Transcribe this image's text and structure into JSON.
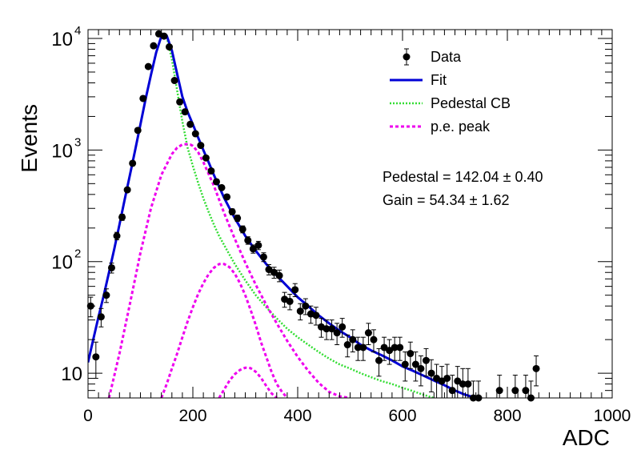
{
  "chart_data": {
    "type": "scatter",
    "xlabel": "ADC",
    "ylabel": "Events",
    "xlim": [
      0,
      1000
    ],
    "ylim": [
      6,
      12000
    ],
    "yscale": "log",
    "grid": false,
    "legend_position": "top-right",
    "x_ticks": [
      "0",
      "200",
      "400",
      "600",
      "800",
      "1000"
    ],
    "x_tick_values": [
      0,
      200,
      400,
      600,
      800,
      1000
    ],
    "y_ticks": [
      {
        "value": 10,
        "base": "10",
        "exp": ""
      },
      {
        "value": 100,
        "base": "10",
        "exp": "2"
      },
      {
        "value": 1000,
        "base": "10",
        "exp": "3"
      },
      {
        "value": 10000,
        "base": "10",
        "exp": "4"
      }
    ],
    "legend": [
      {
        "label": "Data",
        "style": "marker",
        "color": "#000000"
      },
      {
        "label": "Fit",
        "style": "solid",
        "color": "#0000d6"
      },
      {
        "label": "Pedestal CB",
        "style": "dotted",
        "color": "#33dd33"
      },
      {
        "label": "p.e. peak",
        "style": "dashed",
        "color": "#ee00ee"
      }
    ],
    "annotations": [
      {
        "text": "Pedestal = 142.04 ± 0.40"
      },
      {
        "text": "Gain = 54.34 ± 1.62"
      }
    ],
    "series": [
      {
        "name": "Data",
        "style": "marker",
        "color": "#000000",
        "x": [
          5,
          15,
          25,
          35,
          45,
          55,
          65,
          75,
          85,
          95,
          105,
          115,
          125,
          135,
          145,
          155,
          165,
          175,
          185,
          195,
          205,
          215,
          225,
          235,
          245,
          255,
          265,
          275,
          285,
          295,
          305,
          315,
          325,
          335,
          345,
          355,
          365,
          375,
          385,
          395,
          405,
          415,
          425,
          435,
          445,
          455,
          465,
          475,
          485,
          495,
          505,
          515,
          525,
          535,
          545,
          555,
          565,
          575,
          585,
          595,
          605,
          615,
          625,
          635,
          645,
          655,
          665,
          675,
          685,
          695,
          705,
          715,
          725,
          735,
          745,
          785,
          815,
          835,
          845,
          855
        ],
        "y": [
          40,
          14,
          32,
          50,
          88,
          170,
          250,
          440,
          760,
          1500,
          2900,
          5600,
          8600,
          11000,
          10500,
          8400,
          4200,
          2700,
          2200,
          1700,
          1400,
          1100,
          850,
          650,
          520,
          460,
          380,
          280,
          245,
          195,
          155,
          130,
          140,
          110,
          85,
          80,
          75,
          46,
          44,
          56,
          36,
          40,
          34,
          33,
          26,
          25,
          25,
          23,
          26,
          18,
          20,
          17,
          17,
          23,
          20,
          13,
          17,
          16,
          17,
          17,
          12,
          15,
          12,
          11,
          13,
          10,
          9,
          8.5,
          9,
          7,
          8.5,
          8,
          8,
          6,
          6,
          7,
          7,
          7,
          6,
          11
        ],
        "err": [
          8,
          5,
          6,
          7,
          9,
          13,
          16,
          21,
          28,
          39,
          54,
          75,
          93,
          105,
          102,
          92,
          65,
          52,
          47,
          41,
          37,
          33,
          29,
          25,
          23,
          21,
          19,
          17,
          16,
          14,
          12,
          11,
          12,
          10,
          9,
          9,
          9,
          7,
          7,
          7.5,
          6,
          6.5,
          6,
          6,
          5,
          5,
          5,
          5,
          5,
          4,
          4.5,
          4,
          4,
          5,
          4.5,
          3.6,
          4,
          4,
          4,
          4,
          3.5,
          4,
          3.5,
          3.3,
          3.6,
          3.2,
          3,
          3,
          3,
          2.6,
          3,
          3,
          3,
          2.5,
          2.5,
          2.6,
          2.6,
          2.6,
          2.5,
          3.3
        ]
      },
      {
        "name": "Fit",
        "style": "solid",
        "color": "#0000d6",
        "x": [
          0,
          10,
          20,
          30,
          40,
          50,
          60,
          70,
          80,
          90,
          100,
          110,
          120,
          130,
          140,
          150,
          160,
          170,
          180,
          190,
          200,
          210,
          220,
          230,
          240,
          250,
          260,
          270,
          280,
          290,
          300,
          320,
          340,
          360,
          380,
          400,
          420,
          440,
          460,
          480,
          500,
          520,
          540,
          560,
          580,
          600,
          620,
          640,
          660,
          680,
          700,
          720,
          740
        ],
        "y": [
          12.5,
          20,
          32,
          50,
          80,
          130,
          215,
          360,
          600,
          1000,
          1700,
          2900,
          4700,
          7500,
          10500,
          10600,
          7800,
          4800,
          3000,
          2200,
          1700,
          1300,
          1000,
          780,
          600,
          470,
          370,
          300,
          245,
          205,
          170,
          125,
          95,
          75,
          60,
          48,
          40,
          33,
          28,
          24,
          21,
          18,
          16,
          14.5,
          13,
          11.5,
          10.5,
          9.5,
          8.6,
          7.8,
          7,
          6.4,
          6
        ]
      },
      {
        "name": "Pedestal CB",
        "style": "dotted",
        "color": "#33dd33",
        "x": [
          0,
          10,
          20,
          30,
          40,
          50,
          60,
          70,
          80,
          90,
          100,
          110,
          120,
          130,
          140,
          150,
          160,
          170,
          180,
          190,
          200,
          210,
          220,
          230,
          240,
          250,
          260,
          270,
          280,
          300,
          320,
          340,
          360,
          380,
          400,
          420,
          440,
          460,
          480,
          500,
          520,
          540,
          560,
          580,
          600,
          620,
          640,
          660
        ],
        "y": [
          12.5,
          20,
          32,
          50,
          80,
          130,
          215,
          360,
          600,
          1000,
          1700,
          2900,
          4700,
          7500,
          10400,
          10300,
          6500,
          3400,
          1800,
          1050,
          720,
          510,
          370,
          280,
          215,
          170,
          140,
          115,
          95,
          68,
          50,
          39,
          31,
          25,
          21,
          18,
          15.5,
          13.5,
          12,
          11,
          10,
          9.2,
          8.5,
          8,
          7.4,
          6.9,
          6.4,
          6
        ]
      },
      {
        "name": "p.e. peak",
        "style": "dashed",
        "color": "#ee00ee",
        "x": [
          40,
          50,
          60,
          80,
          100,
          120,
          140,
          160,
          170,
          180,
          190,
          195,
          200,
          210,
          220,
          240,
          260,
          280,
          300,
          320,
          340,
          360,
          380,
          400,
          420,
          440,
          460,
          480,
          500
        ],
        "y": [
          6,
          9.5,
          15,
          42,
          120,
          300,
          600,
          920,
          1050,
          1120,
          1130,
          1120,
          1090,
          960,
          780,
          480,
          270,
          160,
          98,
          62,
          41,
          28,
          19.5,
          14,
          10.5,
          8.2,
          6.8,
          6.2,
          6
        ]
      },
      {
        "name": "p.e. peak 2",
        "style": "dashed",
        "color": "#ee00ee",
        "x": [
          140,
          150,
          160,
          170,
          180,
          190,
          200,
          210,
          220,
          230,
          240,
          250,
          260,
          270,
          280,
          290,
          300,
          310,
          320,
          330,
          340,
          350,
          360,
          370,
          380
        ],
        "y": [
          6,
          8,
          11,
          15,
          21,
          29,
          39,
          51,
          64,
          77,
          88,
          95,
          95,
          89,
          78,
          64,
          50,
          37,
          27,
          19,
          14,
          10.3,
          8,
          6.8,
          6
        ]
      },
      {
        "name": "p.e. peak 3",
        "style": "dashed",
        "color": "#ee00ee",
        "x": [
          250,
          260,
          270,
          280,
          290,
          300,
          310,
          320,
          330,
          340,
          350,
          360
        ],
        "y": [
          6,
          7.2,
          8.6,
          9.8,
          10.7,
          11.2,
          11.1,
          10.3,
          9.1,
          7.7,
          6.6,
          6
        ]
      }
    ]
  }
}
